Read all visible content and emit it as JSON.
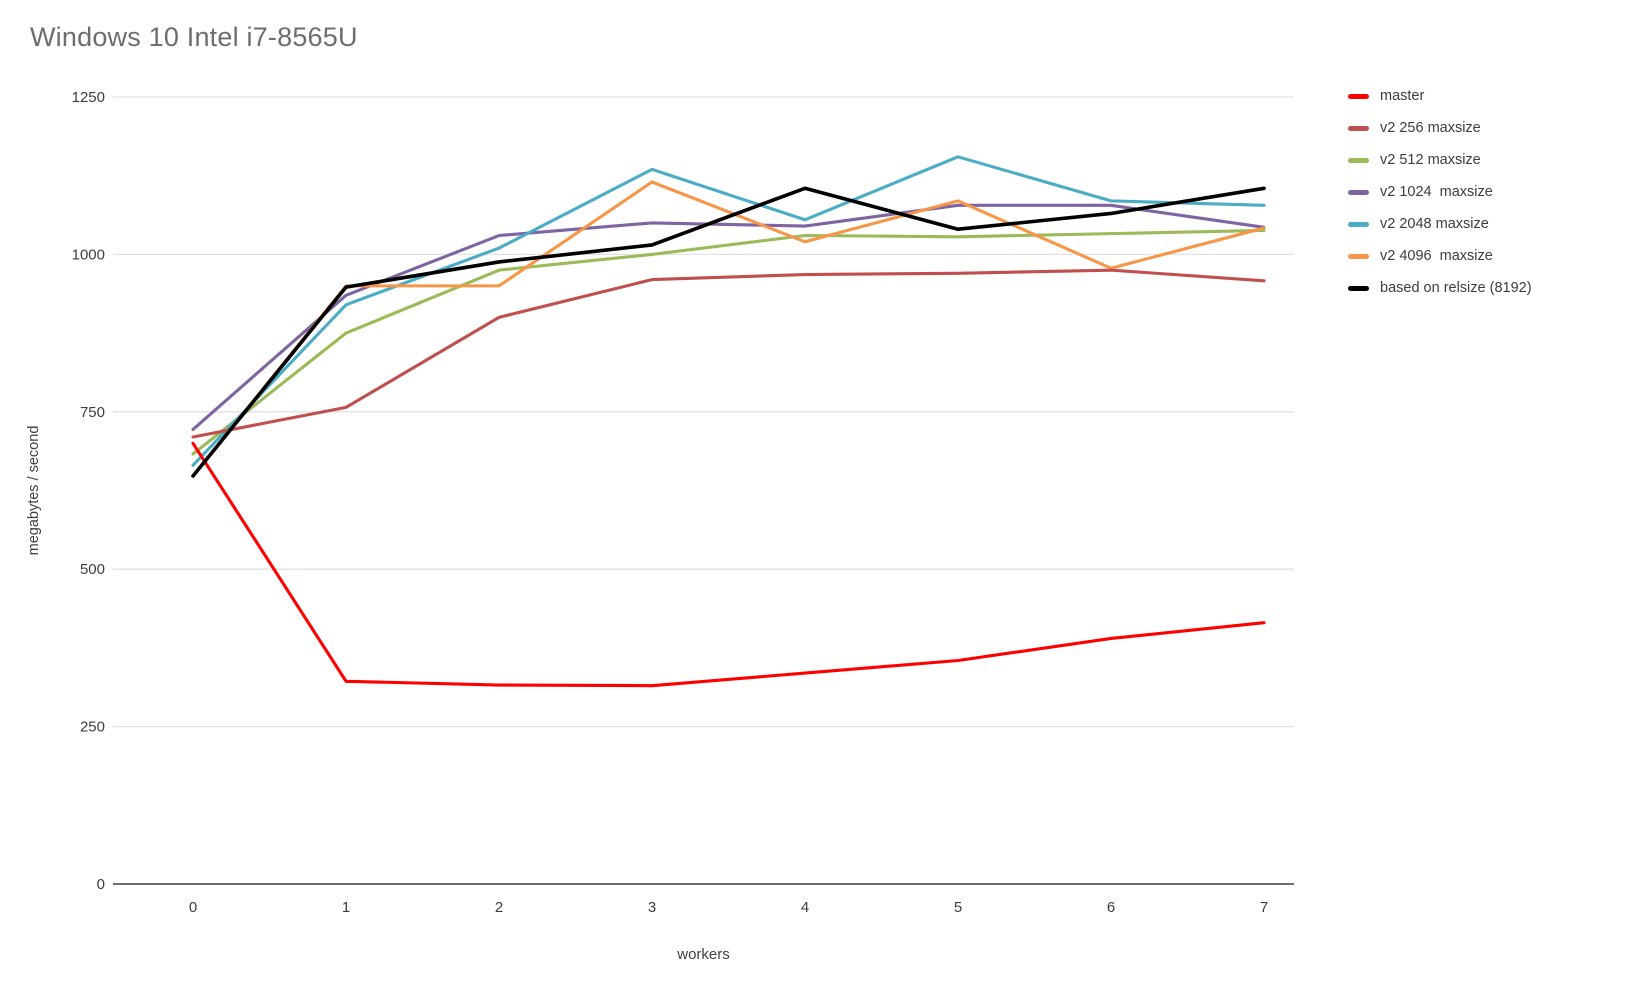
{
  "title": "Windows 10 Intel i7-8565U",
  "chart_data": {
    "type": "line",
    "x": [
      0,
      1,
      2,
      3,
      4,
      5,
      6,
      7
    ],
    "xlabel": "workers",
    "ylabel": "megabytes / second",
    "ylim": [
      0,
      1250
    ],
    "y_ticks": [
      0,
      250,
      500,
      750,
      1000,
      1250
    ],
    "grid": true,
    "legend_position": "right",
    "series": [
      {
        "name": "master",
        "color": "#ff0000",
        "values": [
          700,
          322,
          316,
          315,
          335,
          355,
          390,
          415
        ]
      },
      {
        "name": "v2 256 maxsize",
        "color": "#c0504d",
        "values": [
          710,
          757,
          900,
          960,
          968,
          970,
          975,
          958
        ]
      },
      {
        "name": "v2 512 maxsize",
        "color": "#9bbb59",
        "values": [
          683,
          875,
          975,
          1000,
          1030,
          1028,
          1033,
          1038
        ]
      },
      {
        "name": "v2 1024  maxsize",
        "color": "#8064a2",
        "values": [
          722,
          935,
          1030,
          1050,
          1045,
          1078,
          1078,
          1043
        ]
      },
      {
        "name": "v2 2048 maxsize",
        "color": "#4bacc6",
        "values": [
          665,
          920,
          1010,
          1135,
          1055,
          1155,
          1085,
          1078
        ]
      },
      {
        "name": "v2 4096  maxsize",
        "color": "#f79646",
        "values": [
          648,
          950,
          950,
          1115,
          1020,
          1085,
          978,
          1042
        ]
      },
      {
        "name": "based on relsize (8192)",
        "color": "#000000",
        "values": [
          648,
          948,
          988,
          1015,
          1105,
          1040,
          1065,
          1105
        ]
      }
    ]
  },
  "style": {
    "grid_color": "#e2e2e2",
    "axis_color": "#6e6e6e",
    "tick_color": "#3d3d3d",
    "axis_title_color": "#404040"
  }
}
